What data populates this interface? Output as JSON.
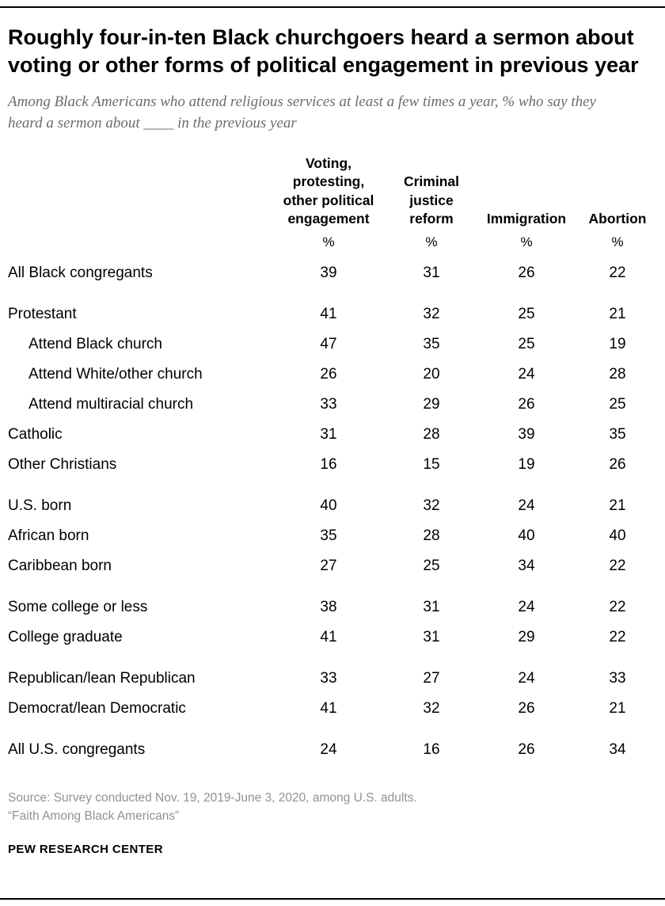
{
  "title": "Roughly four-in-ten Black churchgoers heard a sermon about voting or other forms of political engagement in previous year",
  "subtitle": "Among Black Americans who attend religious services at least a few times a year, % who say they heard a sermon about ____ in the previous year",
  "source_line1": "Source: Survey conducted Nov. 19, 2019-June 3, 2020, among U.S. adults.",
  "source_line2": "“Faith Among Black Americans”",
  "footer": "PEW RESEARCH CENTER",
  "chart_data": {
    "type": "table",
    "title": "Roughly four-in-ten Black churchgoers heard a sermon about voting or other forms of political engagement in previous year",
    "subtitle": "Among Black Americans who attend religious services at least a few times a year, % who say they heard a sermon about ____ in the previous year",
    "columns": [
      "Voting, protesting, other political engagement",
      "Criminal justice reform",
      "Immigration",
      "Abortion"
    ],
    "unit_row": [
      "%",
      "%",
      "%",
      "%"
    ],
    "rows": [
      {
        "label": "All Black congregants",
        "indent": false,
        "group_start": false,
        "values": [
          39,
          31,
          26,
          22
        ]
      },
      {
        "label": "Protestant",
        "indent": false,
        "group_start": true,
        "values": [
          41,
          32,
          25,
          21
        ]
      },
      {
        "label": "Attend Black church",
        "indent": true,
        "group_start": false,
        "values": [
          47,
          35,
          25,
          19
        ]
      },
      {
        "label": "Attend White/other church",
        "indent": true,
        "group_start": false,
        "values": [
          26,
          20,
          24,
          28
        ]
      },
      {
        "label": "Attend multiracial church",
        "indent": true,
        "group_start": false,
        "values": [
          33,
          29,
          26,
          25
        ]
      },
      {
        "label": "Catholic",
        "indent": false,
        "group_start": false,
        "values": [
          31,
          28,
          39,
          35
        ]
      },
      {
        "label": "Other Christians",
        "indent": false,
        "group_start": false,
        "values": [
          16,
          15,
          19,
          26
        ]
      },
      {
        "label": "U.S. born",
        "indent": false,
        "group_start": true,
        "values": [
          40,
          32,
          24,
          21
        ]
      },
      {
        "label": "African born",
        "indent": false,
        "group_start": false,
        "values": [
          35,
          28,
          40,
          40
        ]
      },
      {
        "label": "Caribbean born",
        "indent": false,
        "group_start": false,
        "values": [
          27,
          25,
          34,
          22
        ]
      },
      {
        "label": "Some college or less",
        "indent": false,
        "group_start": true,
        "values": [
          38,
          31,
          24,
          22
        ]
      },
      {
        "label": "College graduate",
        "indent": false,
        "group_start": false,
        "values": [
          41,
          31,
          29,
          22
        ]
      },
      {
        "label": "Republican/lean Republican",
        "indent": false,
        "group_start": true,
        "values": [
          33,
          27,
          24,
          33
        ]
      },
      {
        "label": "Democrat/lean Democratic",
        "indent": false,
        "group_start": false,
        "values": [
          41,
          32,
          26,
          21
        ]
      },
      {
        "label": "All U.S. congregants",
        "indent": false,
        "group_start": true,
        "values": [
          24,
          16,
          26,
          34
        ]
      }
    ]
  }
}
